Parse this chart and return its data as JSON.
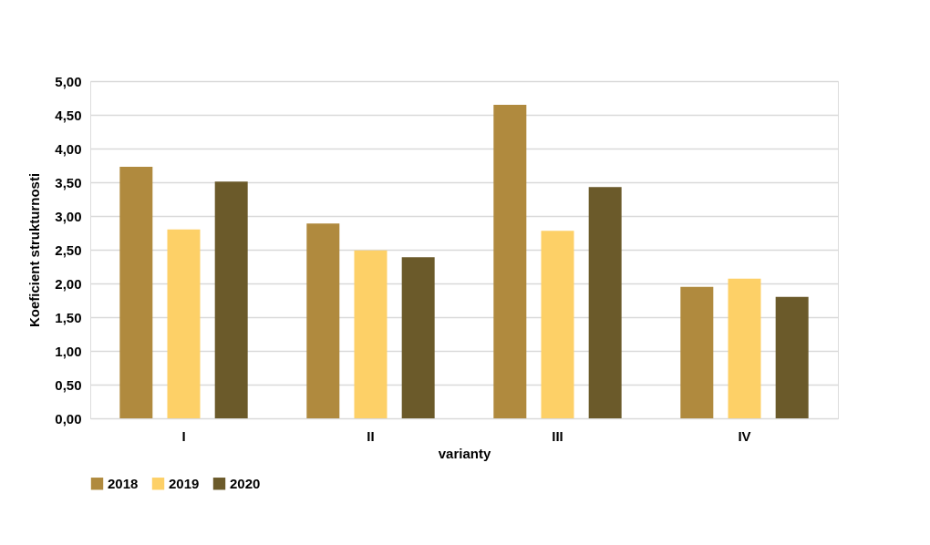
{
  "chart_data": {
    "type": "bar",
    "xlabel": "varianty",
    "ylabel": "Koeficient strukturnosti",
    "categories": [
      "I",
      "II",
      "III",
      "IV"
    ],
    "series": [
      {
        "name": "2018",
        "color": "#b08a3e",
        "values": [
          3.73,
          2.89,
          4.65,
          1.95
        ]
      },
      {
        "name": "2019",
        "color": "#fdd067",
        "values": [
          2.8,
          2.49,
          2.78,
          2.07
        ]
      },
      {
        "name": "2020",
        "color": "#6b5a2a",
        "values": [
          3.51,
          2.39,
          3.43,
          1.8
        ]
      }
    ],
    "ylim": [
      0,
      5
    ],
    "yticks": [
      {
        "value": 0,
        "label": "0,00"
      },
      {
        "value": 0.5,
        "label": "0,50"
      },
      {
        "value": 1,
        "label": "1,00"
      },
      {
        "value": 1.5,
        "label": "1,50"
      },
      {
        "value": 2,
        "label": "2,00"
      },
      {
        "value": 2.5,
        "label": "2,50"
      },
      {
        "value": 3,
        "label": "3,00"
      },
      {
        "value": 3.5,
        "label": "3,50"
      },
      {
        "value": 4,
        "label": "4,00"
      },
      {
        "value": 4.5,
        "label": "4,50"
      },
      {
        "value": 5,
        "label": "5,00"
      }
    ],
    "grid": "y",
    "legend": "bottom"
  }
}
